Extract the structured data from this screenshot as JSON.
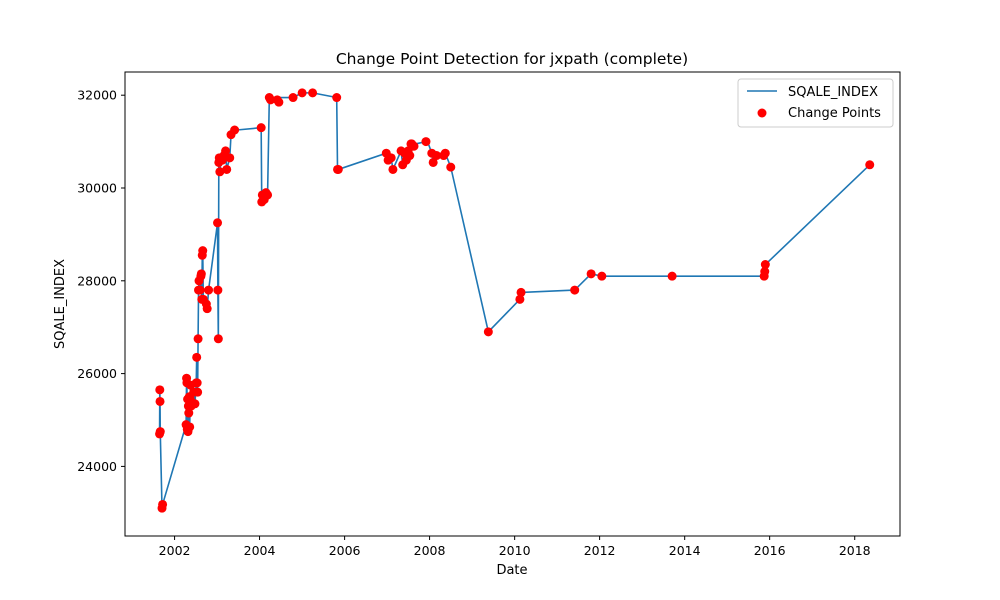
{
  "chart_data": {
    "type": "line",
    "title": "Change Point Detection for jxpath (complete)",
    "xlabel": "Date",
    "ylabel": "SQALE_INDEX",
    "xlim": [
      "2000-11-01",
      "2019-01-25"
    ],
    "ylim": [
      22500,
      32500
    ],
    "x_ticks": [
      "2002",
      "2004",
      "2006",
      "2008",
      "2010",
      "2012",
      "2014",
      "2016",
      "2018"
    ],
    "y_ticks": [
      24000,
      26000,
      28000,
      30000,
      32000
    ],
    "legend": {
      "placement": "top-right",
      "entries": [
        "SQALE_INDEX",
        "Change Points"
      ]
    },
    "grid": false,
    "colors": {
      "line": "#1f77b4",
      "points": "#ff0000"
    },
    "series": [
      {
        "name": "SQALE_INDEX",
        "kind": "line",
        "points": [
          [
            "2001-08-25",
            24700
          ],
          [
            "2001-08-27",
            25650
          ],
          [
            "2001-08-29",
            25400
          ],
          [
            "2001-08-31",
            24750
          ],
          [
            "2001-09-15",
            23100
          ],
          [
            "2001-09-20",
            23180
          ],
          [
            "2002-04-10",
            24900
          ],
          [
            "2002-04-14",
            25900
          ],
          [
            "2002-04-17",
            25800
          ],
          [
            "2002-04-20",
            24800
          ],
          [
            "2002-04-23",
            25450
          ],
          [
            "2002-04-26",
            24750
          ],
          [
            "2002-04-30",
            25300
          ],
          [
            "2002-05-03",
            25150
          ],
          [
            "2002-05-07",
            25500
          ],
          [
            "2002-05-11",
            24850
          ],
          [
            "2002-05-15",
            25450
          ],
          [
            "2002-05-19",
            25750
          ],
          [
            "2002-05-23",
            25300
          ],
          [
            "2002-06-15",
            25600
          ],
          [
            "2002-06-25",
            25350
          ],
          [
            "2002-07-06",
            25800
          ],
          [
            "2002-07-10",
            26350
          ],
          [
            "2002-07-14",
            25800
          ],
          [
            "2002-07-18",
            25600
          ],
          [
            "2002-07-22",
            26750
          ],
          [
            "2002-07-26",
            27800
          ],
          [
            "2002-07-30",
            28000
          ],
          [
            "2002-08-08",
            27800
          ],
          [
            "2002-08-15",
            28100
          ],
          [
            "2002-08-19",
            28150
          ],
          [
            "2002-08-23",
            27600
          ],
          [
            "2002-08-27",
            28550
          ],
          [
            "2002-08-31",
            28650
          ],
          [
            "2002-09-05",
            27600
          ],
          [
            "2002-09-20",
            27600
          ],
          [
            "2002-10-01",
            27500
          ],
          [
            "2002-10-08",
            27400
          ],
          [
            "2002-10-20",
            27800
          ],
          [
            "2003-01-05",
            29250
          ],
          [
            "2003-01-08",
            27800
          ],
          [
            "2003-01-12",
            26750
          ],
          [
            "2003-01-16",
            30550
          ],
          [
            "2003-01-20",
            30650
          ],
          [
            "2003-01-25",
            30350
          ],
          [
            "2003-02-05",
            30600
          ],
          [
            "2003-02-15",
            30600
          ],
          [
            "2003-03-01",
            30700
          ],
          [
            "2003-03-15",
            30800
          ],
          [
            "2003-03-25",
            30400
          ],
          [
            "2003-04-20",
            30650
          ],
          [
            "2003-05-01",
            31150
          ],
          [
            "2003-06-01",
            31250
          ],
          [
            "2003-06-20",
            31250
          ],
          [
            "2004-01-15",
            31300
          ],
          [
            "2004-01-20",
            29700
          ],
          [
            "2004-01-25",
            29850
          ],
          [
            "2004-02-10",
            29750
          ],
          [
            "2004-02-25",
            29900
          ],
          [
            "2004-03-10",
            29850
          ],
          [
            "2004-03-25",
            31950
          ],
          [
            "2004-04-05",
            31900
          ],
          [
            "2004-06-01",
            31900
          ],
          [
            "2004-06-15",
            31850
          ],
          [
            "2004-07-01",
            31950
          ],
          [
            "2004-10-15",
            31950
          ],
          [
            "2005-01-01",
            32050
          ],
          [
            "2005-04-01",
            32050
          ],
          [
            "2005-10-25",
            31950
          ],
          [
            "2005-11-01",
            30400
          ],
          [
            "2005-11-08",
            30400
          ],
          [
            "2006-12-25",
            30750
          ],
          [
            "2007-01-10",
            30600
          ],
          [
            "2007-02-05",
            30650
          ],
          [
            "2007-02-20",
            30400
          ],
          [
            "2007-05-01",
            30800
          ],
          [
            "2007-05-15",
            30500
          ],
          [
            "2007-06-01",
            30750
          ],
          [
            "2007-06-15",
            30600
          ],
          [
            "2007-07-01",
            30800
          ],
          [
            "2007-07-15",
            30700
          ],
          [
            "2007-07-25",
            30950
          ],
          [
            "2007-08-01",
            30950
          ],
          [
            "2007-08-20",
            30900
          ],
          [
            "2007-09-01",
            30950
          ],
          [
            "2007-12-01",
            31000
          ],
          [
            "2007-12-15",
            31000
          ],
          [
            "2008-01-20",
            30750
          ],
          [
            "2008-02-01",
            30550
          ],
          [
            "2008-03-01",
            30700
          ],
          [
            "2008-05-01",
            30700
          ],
          [
            "2008-05-15",
            30750
          ],
          [
            "2008-07-01",
            30450
          ],
          [
            "2009-05-20",
            26900
          ],
          [
            "2010-02-15",
            27600
          ],
          [
            "2010-02-25",
            27750
          ],
          [
            "2011-06-01",
            27800
          ],
          [
            "2011-10-20",
            28150
          ],
          [
            "2012-01-20",
            28100
          ],
          [
            "2013-09-15",
            28100
          ],
          [
            "2015-11-15",
            28100
          ],
          [
            "2015-11-20",
            28200
          ],
          [
            "2015-11-25",
            28350
          ],
          [
            "2018-05-10",
            30500
          ]
        ]
      }
    ],
    "change_points": [
      [
        "2001-08-25",
        24700
      ],
      [
        "2001-08-27",
        25650
      ],
      [
        "2001-08-29",
        25400
      ],
      [
        "2001-08-31",
        24750
      ],
      [
        "2001-09-15",
        23100
      ],
      [
        "2001-09-20",
        23180
      ],
      [
        "2002-04-10",
        24900
      ],
      [
        "2002-04-14",
        25900
      ],
      [
        "2002-04-17",
        25800
      ],
      [
        "2002-04-20",
        24800
      ],
      [
        "2002-04-23",
        25450
      ],
      [
        "2002-04-26",
        24750
      ],
      [
        "2002-04-30",
        25300
      ],
      [
        "2002-05-03",
        25150
      ],
      [
        "2002-05-07",
        25500
      ],
      [
        "2002-05-11",
        24850
      ],
      [
        "2002-05-15",
        25450
      ],
      [
        "2002-05-19",
        25750
      ],
      [
        "2002-05-23",
        25300
      ],
      [
        "2002-06-15",
        25600
      ],
      [
        "2002-06-25",
        25350
      ],
      [
        "2002-07-06",
        25800
      ],
      [
        "2002-07-10",
        26350
      ],
      [
        "2002-07-14",
        25800
      ],
      [
        "2002-07-18",
        25600
      ],
      [
        "2002-07-22",
        26750
      ],
      [
        "2002-07-26",
        27800
      ],
      [
        "2002-07-30",
        28000
      ],
      [
        "2002-08-08",
        27800
      ],
      [
        "2002-08-15",
        28100
      ],
      [
        "2002-08-19",
        28150
      ],
      [
        "2002-08-23",
        27600
      ],
      [
        "2002-08-27",
        28550
      ],
      [
        "2002-08-31",
        28650
      ],
      [
        "2002-09-05",
        27600
      ],
      [
        "2002-10-01",
        27500
      ],
      [
        "2002-10-08",
        27400
      ],
      [
        "2002-10-20",
        27800
      ],
      [
        "2003-01-05",
        29250
      ],
      [
        "2003-01-08",
        27800
      ],
      [
        "2003-01-12",
        26750
      ],
      [
        "2003-01-16",
        30550
      ],
      [
        "2003-01-20",
        30650
      ],
      [
        "2003-01-25",
        30350
      ],
      [
        "2003-02-05",
        30600
      ],
      [
        "2003-02-15",
        30600
      ],
      [
        "2003-03-01",
        30700
      ],
      [
        "2003-03-15",
        30800
      ],
      [
        "2003-03-25",
        30400
      ],
      [
        "2003-04-20",
        30650
      ],
      [
        "2003-05-01",
        31150
      ],
      [
        "2003-06-01",
        31250
      ],
      [
        "2004-01-15",
        31300
      ],
      [
        "2004-01-20",
        29700
      ],
      [
        "2004-01-25",
        29850
      ],
      [
        "2004-02-10",
        29750
      ],
      [
        "2004-02-25",
        29900
      ],
      [
        "2004-03-10",
        29850
      ],
      [
        "2004-03-25",
        31950
      ],
      [
        "2004-04-05",
        31900
      ],
      [
        "2004-06-01",
        31900
      ],
      [
        "2004-06-15",
        31850
      ],
      [
        "2004-10-15",
        31950
      ],
      [
        "2005-01-01",
        32050
      ],
      [
        "2005-04-01",
        32050
      ],
      [
        "2005-10-25",
        31950
      ],
      [
        "2005-11-01",
        30400
      ],
      [
        "2005-11-08",
        30400
      ],
      [
        "2006-12-25",
        30750
      ],
      [
        "2007-01-10",
        30600
      ],
      [
        "2007-02-05",
        30650
      ],
      [
        "2007-02-20",
        30400
      ],
      [
        "2007-05-01",
        30800
      ],
      [
        "2007-05-15",
        30500
      ],
      [
        "2007-06-01",
        30750
      ],
      [
        "2007-06-15",
        30600
      ],
      [
        "2007-07-01",
        30800
      ],
      [
        "2007-07-15",
        30700
      ],
      [
        "2007-07-25",
        30950
      ],
      [
        "2007-08-01",
        30950
      ],
      [
        "2007-08-20",
        30900
      ],
      [
        "2007-12-01",
        31000
      ],
      [
        "2008-01-20",
        30750
      ],
      [
        "2008-02-01",
        30550
      ],
      [
        "2008-03-01",
        30700
      ],
      [
        "2008-05-01",
        30700
      ],
      [
        "2008-05-15",
        30750
      ],
      [
        "2008-07-01",
        30450
      ],
      [
        "2009-05-20",
        26900
      ],
      [
        "2010-02-15",
        27600
      ],
      [
        "2010-02-25",
        27750
      ],
      [
        "2011-06-01",
        27800
      ],
      [
        "2011-10-20",
        28150
      ],
      [
        "2012-01-20",
        28100
      ],
      [
        "2013-09-15",
        28100
      ],
      [
        "2015-11-15",
        28100
      ],
      [
        "2015-11-20",
        28200
      ],
      [
        "2015-11-25",
        28350
      ],
      [
        "2018-05-10",
        30500
      ]
    ]
  }
}
